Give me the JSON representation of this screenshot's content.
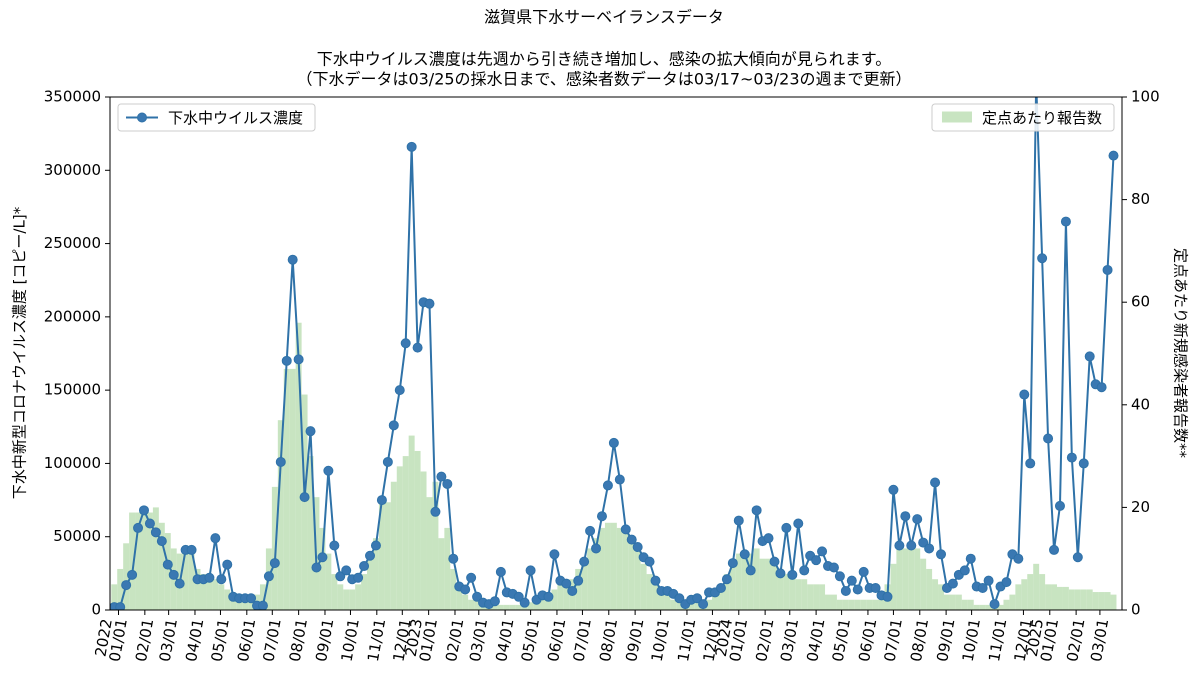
{
  "chart_data": {
    "type": "line",
    "title": "滋賀県下水サーベイランスデータ",
    "subtitle": [
      "下水中ウイルス濃度は先週から引き続き増加し、感染の拡大傾向が見られます。",
      "（下水データは03/25の採水日まで、感染者数データは03/17~03/23の週まで更新）"
    ],
    "y_label": "下水中新型コロナウイルス濃度 [コピー/L]*",
    "y2_label": "定点あたり新規感染者報告数**",
    "x": [
      "2021-12-27",
      "2022-01-03",
      "2022-01-10",
      "2022-01-17",
      "2022-01-24",
      "2022-01-31",
      "2022-02-07",
      "2022-02-14",
      "2022-02-21",
      "2022-02-28",
      "2022-03-07",
      "2022-03-14",
      "2022-03-21",
      "2022-03-28",
      "2022-04-04",
      "2022-04-11",
      "2022-04-18",
      "2022-04-25",
      "2022-05-02",
      "2022-05-09",
      "2022-05-16",
      "2022-05-23",
      "2022-05-30",
      "2022-06-06",
      "2022-06-13",
      "2022-06-20",
      "2022-06-27",
      "2022-07-04",
      "2022-07-11",
      "2022-07-18",
      "2022-07-25",
      "2022-08-01",
      "2022-08-08",
      "2022-08-15",
      "2022-08-22",
      "2022-08-29",
      "2022-09-05",
      "2022-09-12",
      "2022-09-19",
      "2022-09-26",
      "2022-10-03",
      "2022-10-10",
      "2022-10-17",
      "2022-10-24",
      "2022-10-31",
      "2022-11-07",
      "2022-11-14",
      "2022-11-21",
      "2022-11-28",
      "2022-12-05",
      "2022-12-12",
      "2022-12-19",
      "2022-12-26",
      "2023-01-02",
      "2023-01-09",
      "2023-01-16",
      "2023-01-23",
      "2023-01-30",
      "2023-02-06",
      "2023-02-13",
      "2023-02-20",
      "2023-02-27",
      "2023-03-06",
      "2023-03-13",
      "2023-03-20",
      "2023-03-27",
      "2023-04-03",
      "2023-04-10",
      "2023-04-17",
      "2023-04-24",
      "2023-05-01",
      "2023-05-08",
      "2023-05-15",
      "2023-05-22",
      "2023-05-29",
      "2023-06-05",
      "2023-06-12",
      "2023-06-19",
      "2023-06-26",
      "2023-07-03",
      "2023-07-10",
      "2023-07-17",
      "2023-07-24",
      "2023-07-31",
      "2023-08-07",
      "2023-08-14",
      "2023-08-21",
      "2023-08-28",
      "2023-09-04",
      "2023-09-11",
      "2023-09-18",
      "2023-09-25",
      "2023-10-02",
      "2023-10-09",
      "2023-10-16",
      "2023-10-23",
      "2023-10-30",
      "2023-11-06",
      "2023-11-13",
      "2023-11-20",
      "2023-11-27",
      "2023-12-04",
      "2023-12-11",
      "2023-12-18",
      "2023-12-25",
      "2024-01-01",
      "2024-01-08",
      "2024-01-15",
      "2024-01-22",
      "2024-01-29",
      "2024-02-05",
      "2024-02-12",
      "2024-02-19",
      "2024-02-26",
      "2024-03-04",
      "2024-03-11",
      "2024-03-18",
      "2024-03-25",
      "2024-04-01",
      "2024-04-08",
      "2024-04-15",
      "2024-04-22",
      "2024-04-29",
      "2024-05-06",
      "2024-05-13",
      "2024-05-20",
      "2024-05-27",
      "2024-06-03",
      "2024-06-10",
      "2024-06-17",
      "2024-06-24",
      "2024-07-01",
      "2024-07-08",
      "2024-07-15",
      "2024-07-22",
      "2024-07-29",
      "2024-08-05",
      "2024-08-12",
      "2024-08-19",
      "2024-08-26",
      "2024-09-02",
      "2024-09-09",
      "2024-09-16",
      "2024-09-23",
      "2024-09-30",
      "2024-10-07",
      "2024-10-14",
      "2024-10-21",
      "2024-10-28",
      "2024-11-04",
      "2024-11-11",
      "2024-11-18",
      "2024-11-25",
      "2024-12-02",
      "2024-12-09",
      "2024-12-16",
      "2024-12-23",
      "2024-12-30",
      "2025-01-06",
      "2025-01-13",
      "2025-01-20",
      "2025-01-27",
      "2025-02-03",
      "2025-02-10",
      "2025-02-17",
      "2025-02-24",
      "2025-03-03",
      "2025-03-10",
      "2025-03-17"
    ],
    "series": [
      {
        "name": "下水中ウイルス濃度",
        "type": "line",
        "color": "#2f72a8",
        "legend": "upper left",
        "values": [
          2000,
          2000,
          17000,
          24000,
          56000,
          68000,
          59000,
          53000,
          47000,
          31000,
          24000,
          18000,
          41000,
          41000,
          21000,
          21000,
          22000,
          49000,
          21000,
          31000,
          9000,
          8000,
          8000,
          8000,
          3000,
          3000,
          23000,
          32000,
          101000,
          170000,
          239000,
          171000,
          77000,
          122000,
          29000,
          36000,
          95000,
          44000,
          23000,
          27000,
          21000,
          22000,
          30000,
          37000,
          44000,
          75000,
          101000,
          126000,
          150000,
          182000,
          316000,
          179000,
          210000,
          209000,
          67000,
          91000,
          86000,
          35000,
          16000,
          14000,
          22000,
          9000,
          5000,
          4000,
          6000,
          26000,
          12000,
          11000,
          9000,
          5000,
          27000,
          7000,
          10000,
          9000,
          38000,
          20000,
          18000,
          13000,
          20000,
          33000,
          54000,
          42000,
          64000,
          85000,
          114000,
          89000,
          55000,
          48000,
          43000,
          36000,
          33000,
          20000,
          13000,
          13000,
          11000,
          8000,
          4000,
          7000,
          8000,
          4000,
          12000,
          12000,
          15000,
          21000,
          32000,
          61000,
          38000,
          27000,
          68000,
          47000,
          49000,
          33000,
          25000,
          56000,
          24000,
          59000,
          27000,
          37000,
          34000,
          40000,
          30000,
          29000,
          23000,
          13000,
          20000,
          14000,
          26000,
          15000,
          15000,
          10000,
          9000,
          82000,
          44000,
          64000,
          44000,
          62000,
          46000,
          42000,
          87000,
          38000,
          15000,
          18000,
          24000,
          27000,
          35000,
          16000,
          15000,
          20000,
          4000,
          16000,
          19000,
          38000,
          35000,
          147000,
          100000,
          360000,
          240000,
          117000,
          41000,
          71000,
          265000,
          104000,
          36000,
          100000,
          173000,
          154000,
          152000,
          232000,
          310000
        ]
      },
      {
        "name": "定点あたり報告数",
        "type": "bar",
        "axis": "y2",
        "color": "#b5dbac",
        "legend": "upper right",
        "values": [
          5,
          8,
          13,
          19,
          19,
          20,
          19,
          20,
          17,
          15,
          12,
          11,
          11,
          11,
          8,
          7,
          7,
          6,
          5,
          4,
          3,
          3,
          3,
          3,
          3,
          5,
          12,
          24,
          37,
          47,
          47,
          56,
          42,
          30,
          22,
          16,
          11,
          7,
          5,
          4,
          4,
          5,
          7,
          11,
          14,
          21,
          21,
          25,
          28,
          30,
          34,
          31,
          27,
          22,
          25,
          14,
          16,
          8,
          4,
          3,
          2,
          2,
          1,
          1,
          1,
          1,
          1,
          1,
          1,
          1,
          1.5,
          2,
          2,
          3,
          4,
          5,
          5,
          6,
          8,
          10,
          12,
          14,
          16,
          17,
          17,
          16,
          16,
          14,
          12,
          9,
          7,
          5,
          4,
          3,
          2,
          2,
          2,
          2,
          2,
          2,
          2,
          3,
          5,
          7,
          9,
          11,
          11,
          11,
          12,
          10,
          10,
          9,
          8,
          7,
          7,
          6,
          6,
          5,
          5,
          5,
          3,
          3,
          2,
          2,
          2,
          2,
          2,
          2,
          2,
          2,
          5,
          9,
          12,
          12,
          13,
          12,
          10,
          8,
          6,
          5,
          3,
          3,
          3,
          2,
          2,
          1,
          1,
          1,
          1,
          1,
          2,
          3,
          5,
          6,
          7,
          9,
          7,
          5,
          5,
          4.5,
          4.5,
          4,
          4,
          4,
          4,
          3.5,
          3.5,
          3.5,
          3
        ]
      }
    ],
    "xlim": [
      "2021-12-22",
      "2025-03-27"
    ],
    "xticks": [
      {
        "value": "2022-01-01",
        "label": "01/01"
      },
      {
        "value": "2022-02-01",
        "label": "02/01"
      },
      {
        "value": "2022-03-01",
        "label": "03/01"
      },
      {
        "value": "2022-04-01",
        "label": "04/01"
      },
      {
        "value": "2022-05-01",
        "label": "05/01"
      },
      {
        "value": "2022-06-01",
        "label": "06/01"
      },
      {
        "value": "2022-07-01",
        "label": "07/01"
      },
      {
        "value": "2022-08-01",
        "label": "08/01"
      },
      {
        "value": "2022-09-01",
        "label": "09/01"
      },
      {
        "value": "2022-10-01",
        "label": "10/01"
      },
      {
        "value": "2022-11-01",
        "label": "11/01"
      },
      {
        "value": "2022-12-01",
        "label": "12/01"
      },
      {
        "value": "2023-01-01",
        "label": "01/01"
      },
      {
        "value": "2023-02-01",
        "label": "02/01"
      },
      {
        "value": "2023-03-01",
        "label": "03/01"
      },
      {
        "value": "2023-04-01",
        "label": "04/01"
      },
      {
        "value": "2023-05-01",
        "label": "05/01"
      },
      {
        "value": "2023-06-01",
        "label": "06/01"
      },
      {
        "value": "2023-07-01",
        "label": "07/01"
      },
      {
        "value": "2023-08-01",
        "label": "08/01"
      },
      {
        "value": "2023-09-01",
        "label": "09/01"
      },
      {
        "value": "2023-10-01",
        "label": "10/01"
      },
      {
        "value": "2023-11-01",
        "label": "11/01"
      },
      {
        "value": "2023-12-01",
        "label": "12/01"
      },
      {
        "value": "2024-01-01",
        "label": "01/01"
      },
      {
        "value": "2024-02-01",
        "label": "02/01"
      },
      {
        "value": "2024-03-01",
        "label": "03/01"
      },
      {
        "value": "2024-04-01",
        "label": "04/01"
      },
      {
        "value": "2024-05-01",
        "label": "05/01"
      },
      {
        "value": "2024-06-01",
        "label": "06/01"
      },
      {
        "value": "2024-07-01",
        "label": "07/01"
      },
      {
        "value": "2024-08-01",
        "label": "08/01"
      },
      {
        "value": "2024-09-01",
        "label": "09/01"
      },
      {
        "value": "2024-10-01",
        "label": "10/01"
      },
      {
        "value": "2024-11-01",
        "label": "11/01"
      },
      {
        "value": "2024-12-01",
        "label": "12/01"
      },
      {
        "value": "2025-01-01",
        "label": "01/01"
      },
      {
        "value": "2025-02-01",
        "label": "02/01"
      },
      {
        "value": "2025-03-01",
        "label": "03/01"
      }
    ],
    "year_ticks": [
      {
        "value": "2022-01-01",
        "label": "2022"
      },
      {
        "value": "2023-01-01",
        "label": "2023"
      },
      {
        "value": "2024-01-01",
        "label": "2024"
      },
      {
        "value": "2025-01-01",
        "label": "2025"
      }
    ],
    "ylim": [
      0,
      350000
    ],
    "yticks": [
      0,
      50000,
      100000,
      150000,
      200000,
      250000,
      300000,
      350000
    ],
    "y2lim": [
      0,
      100
    ],
    "y2ticks": [
      0,
      20,
      40,
      60,
      80,
      100
    ],
    "grid": false
  }
}
